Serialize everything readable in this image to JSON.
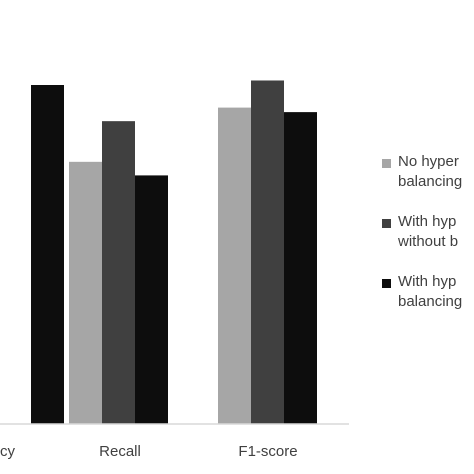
{
  "chart_data": {
    "type": "bar",
    "title": "",
    "xlabel": "",
    "ylabel": "",
    "categories": [
      "Accuracy",
      "Recall",
      "F1-score"
    ],
    "visible_category_labels": [
      "cy",
      "Recall",
      "F1-score"
    ],
    "series": [
      {
        "name_lines": [
          "No hyper",
          "balancing"
        ],
        "color": "#a6a6a6",
        "values": [
          null,
          0.58,
          0.7
        ]
      },
      {
        "name_lines": [
          "With hyp",
          "without b"
        ],
        "color": "#404040",
        "values": [
          null,
          0.67,
          0.76
        ]
      },
      {
        "name_lines": [
          "With hyp",
          "balancing"
        ],
        "color": "#0d0d0d",
        "values": [
          0.75,
          0.55,
          0.69
        ]
      }
    ],
    "ylim": [
      0,
      1
    ],
    "grid": false,
    "legend_position": "right"
  }
}
